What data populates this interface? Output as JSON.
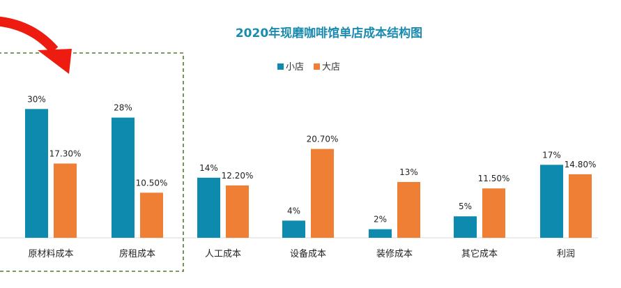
{
  "chart_data": {
    "type": "bar",
    "title": "2020年现磨咖啡馆单店成本结构图",
    "categories": [
      "原材料成本",
      "房租成本",
      "人工成本",
      "设备成本",
      "装修成本",
      "其它成本",
      "利润"
    ],
    "series": [
      {
        "name": "小店",
        "color": "#0e8aae",
        "values": [
          30,
          28,
          14,
          4,
          2,
          5,
          17
        ],
        "labels": [
          "30%",
          "28%",
          "14%",
          "4%",
          "2%",
          "5%",
          "17%"
        ]
      },
      {
        "name": "大店",
        "color": "#ee7f35",
        "values": [
          17.3,
          10.5,
          12.2,
          20.7,
          13,
          11.5,
          14.8
        ],
        "labels": [
          "17.30%",
          "10.50%",
          "12.20%",
          "20.70%",
          "13%",
          "11.50%",
          "14.80%"
        ]
      }
    ],
    "ylim": [
      0,
      32
    ],
    "grid": false,
    "legend_position": "top-center"
  },
  "annotations": {
    "arrow_color": "#ee1c10",
    "highlight_box_color": "#4e7a2f"
  }
}
